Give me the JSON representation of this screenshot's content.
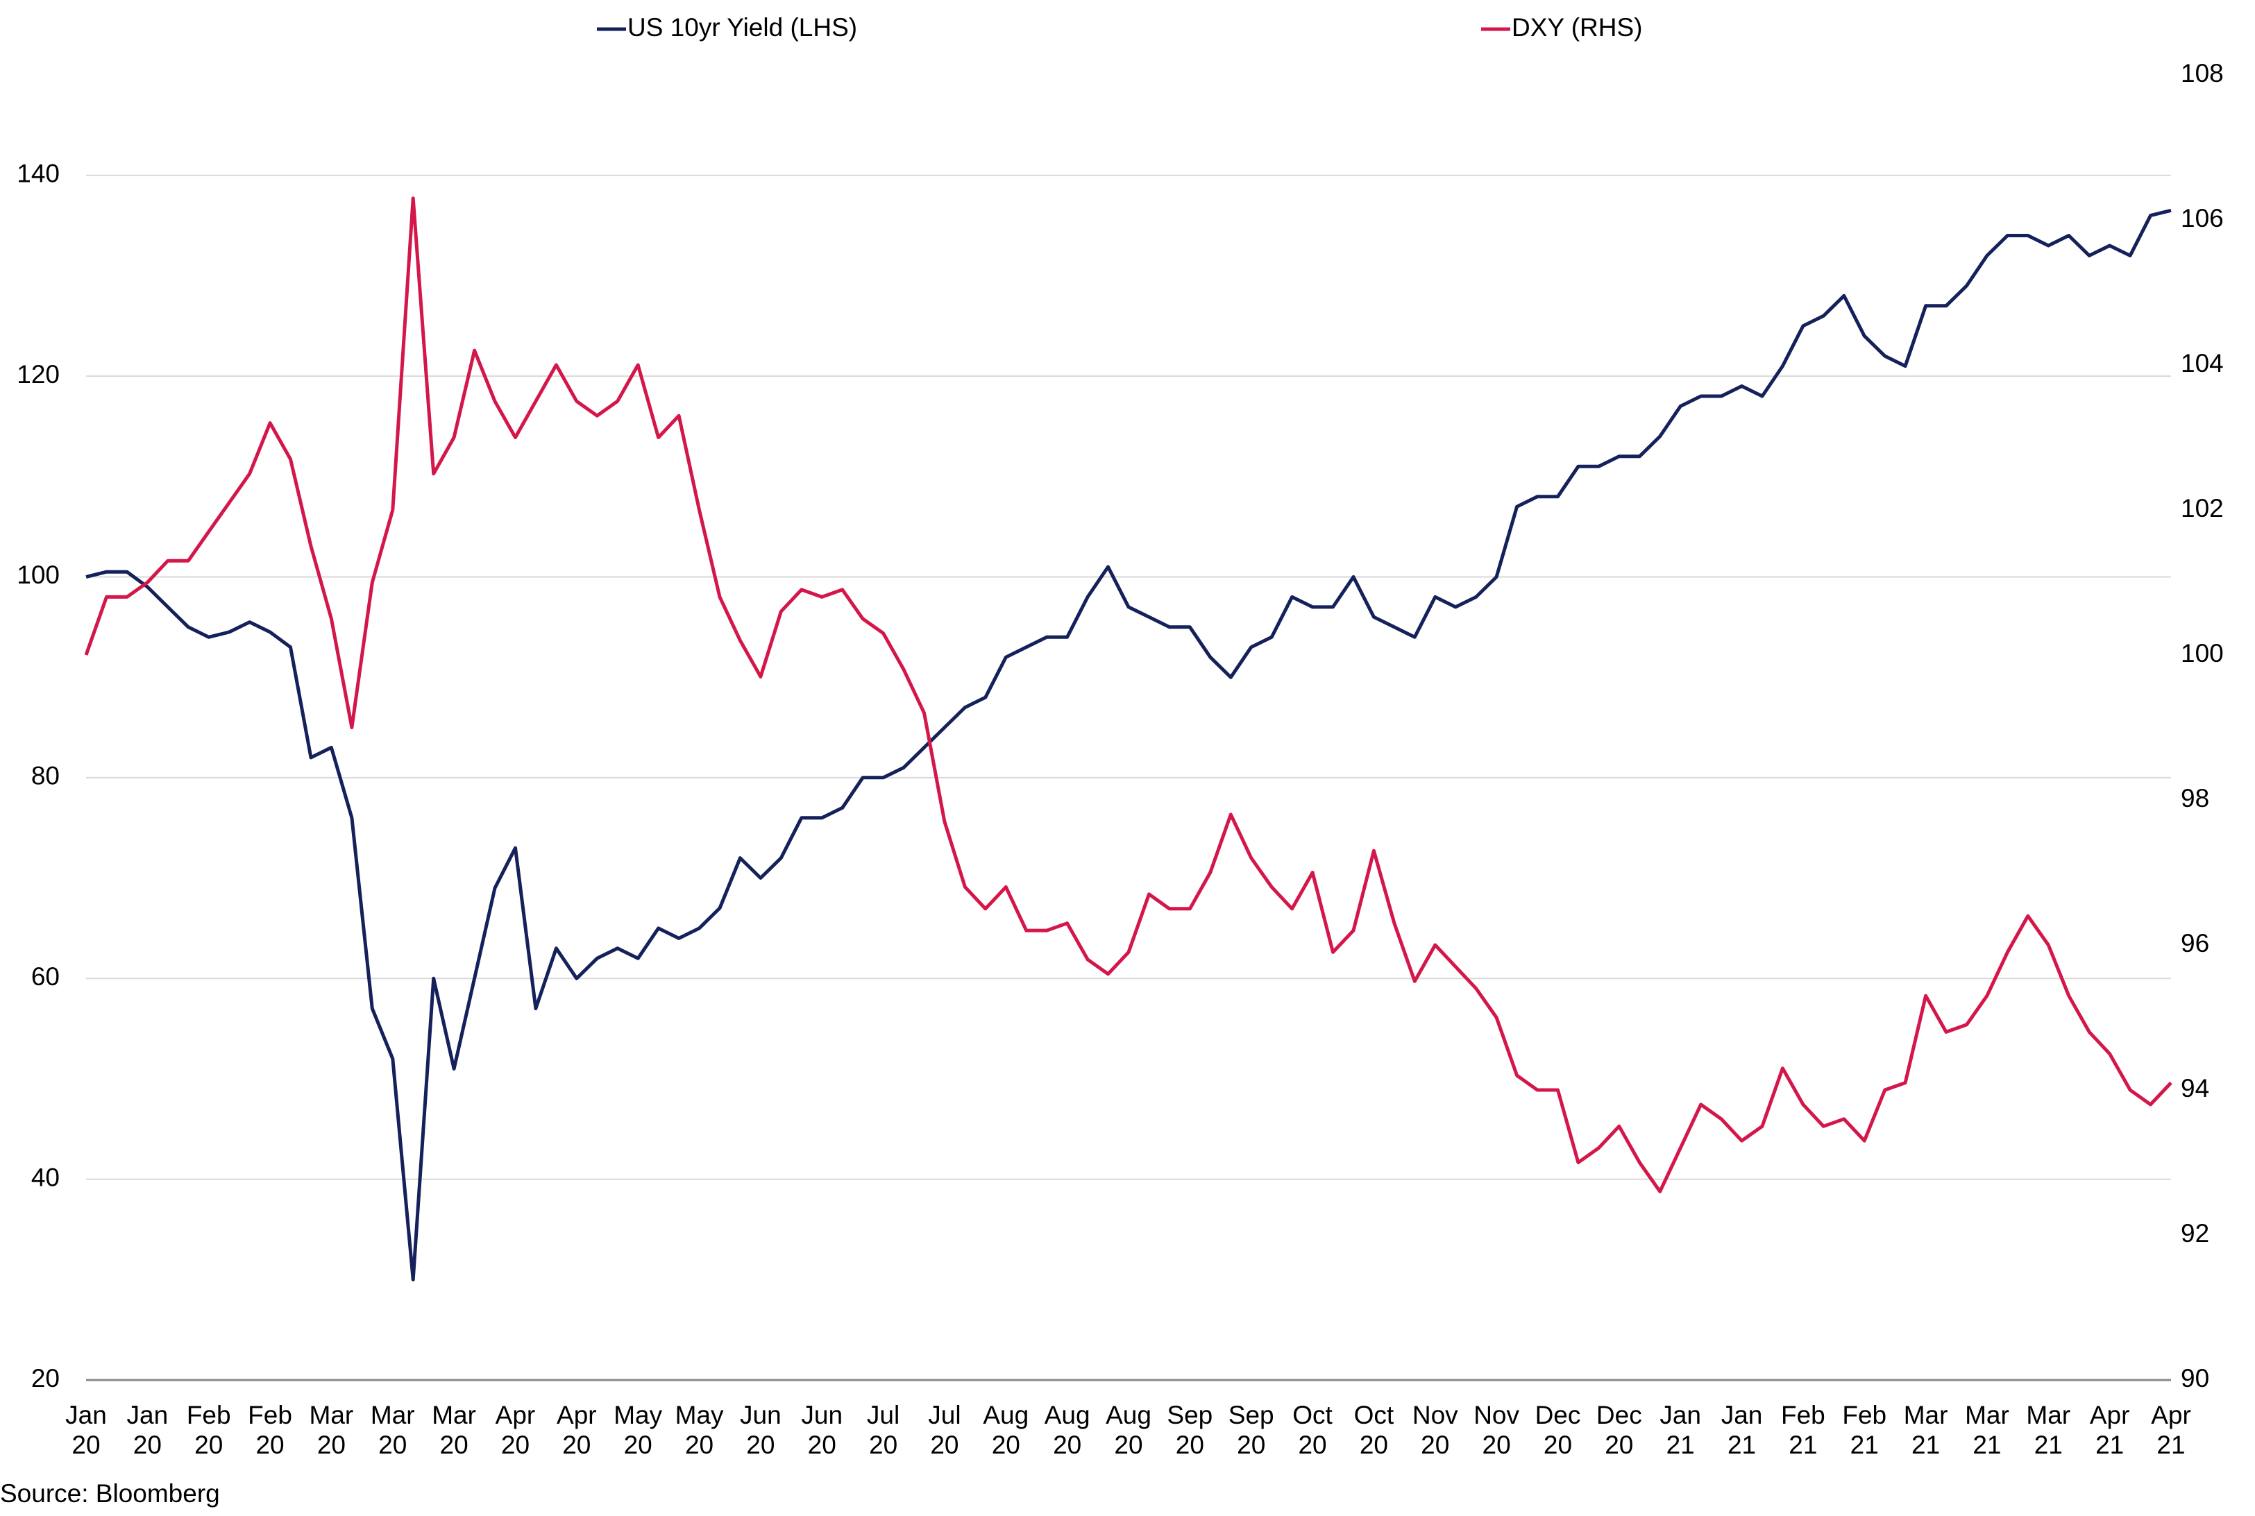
{
  "chart_data": {
    "type": "line",
    "categories": [
      "Jan\n20",
      null,
      null,
      "Jan\n20",
      null,
      null,
      "Feb\n20",
      null,
      null,
      "Feb\n20",
      null,
      null,
      "Mar\n20",
      null,
      null,
      "Mar\n20",
      null,
      null,
      "Mar\n20",
      null,
      null,
      "Apr\n20",
      null,
      null,
      "Apr\n20",
      null,
      null,
      "May\n20",
      null,
      null,
      "May\n20",
      null,
      null,
      "Jun\n20",
      null,
      null,
      "Jun\n20",
      null,
      null,
      "Jul\n20",
      null,
      null,
      "Jul\n20",
      null,
      null,
      "Aug\n20",
      null,
      null,
      "Aug\n20",
      null,
      null,
      "Aug\n20",
      null,
      null,
      "Sep\n20",
      null,
      null,
      "Sep\n20",
      null,
      null,
      "Oct\n20",
      null,
      null,
      "Oct\n20",
      null,
      null,
      "Nov\n20",
      null,
      null,
      "Nov\n20",
      null,
      null,
      "Dec\n20",
      null,
      null,
      "Dec\n20",
      null,
      null,
      "Jan\n21",
      null,
      null,
      "Jan\n21",
      null,
      null,
      "Feb\n21",
      null,
      null,
      "Feb\n21",
      null,
      null,
      "Mar\n21",
      null,
      null,
      "Mar\n21",
      null,
      null,
      "Mar\n21",
      null,
      null,
      "Apr\n21",
      null,
      null,
      "Apr\n21"
    ],
    "series": [
      {
        "name": "US 10yr Yield (LHS)",
        "color": "#14215a",
        "values": [
          100,
          100.5,
          100.5,
          99,
          97,
          95,
          94,
          94.5,
          95.5,
          94.5,
          93,
          82,
          83,
          76,
          57,
          52,
          30,
          60,
          51,
          60,
          69,
          73,
          57,
          63,
          60,
          62,
          63,
          62,
          65,
          64,
          65,
          67,
          72,
          70,
          72,
          76,
          76,
          77,
          80,
          80,
          81,
          83,
          85,
          87,
          88,
          92,
          93,
          94,
          94,
          98,
          101,
          97,
          96,
          95,
          95,
          92,
          90,
          93,
          94,
          98,
          97,
          97,
          100,
          96,
          95,
          94,
          98,
          97,
          98,
          100,
          107,
          108,
          108,
          111,
          111,
          112,
          112,
          114,
          117,
          118,
          118,
          119,
          118,
          121,
          125,
          126,
          128,
          124,
          122,
          121,
          127,
          127,
          129,
          132,
          134,
          134,
          133,
          134,
          132,
          133,
          132,
          136,
          136.5
        ]
      },
      {
        "name": "DXY (RHS)",
        "color": "#d4174a",
        "axis": "y2",
        "values": [
          100,
          100.8,
          100.8,
          101,
          101.3,
          101.3,
          101.7,
          102.1,
          102.5,
          103.2,
          102.7,
          101.5,
          100.5,
          99,
          101,
          102,
          106.3,
          102.5,
          103,
          104.2,
          103.5,
          103,
          103.5,
          104,
          103.5,
          103.3,
          103.5,
          104,
          103,
          103.3,
          102,
          100.8,
          100.2,
          99.7,
          100.6,
          100.9,
          100.8,
          100.9,
          100.5,
          100.3,
          99.8,
          99.2,
          97.7,
          96.8,
          96.5,
          96.8,
          96.2,
          96.2,
          96.3,
          95.8,
          95.6,
          95.9,
          96.7,
          96.5,
          96.5,
          97,
          97.8,
          97.2,
          96.8,
          96.5,
          97,
          95.9,
          96.2,
          97.3,
          96.3,
          95.5,
          96,
          95.7,
          95.4,
          95,
          94.2,
          94,
          94,
          93,
          93.2,
          93.5,
          93,
          92.6,
          93.2,
          93.8,
          93.6,
          93.3,
          93.5,
          94.3,
          93.8,
          93.5,
          93.6,
          93.3,
          94,
          94.1,
          95.3,
          94.8,
          94.9,
          95.3,
          95.9,
          96.4,
          96,
          95.3,
          94.8,
          94.5,
          94,
          93.8,
          94.1
        ]
      }
    ],
    "ylim": [
      20,
      150
    ],
    "yticks": [
      20,
      40,
      60,
      80,
      100,
      120,
      140
    ],
    "y2lim": [
      90,
      108
    ],
    "y2ticks": [
      90,
      92,
      94,
      96,
      98,
      100,
      102,
      104,
      106,
      108
    ],
    "grid": true,
    "source": "Source: Bloomberg"
  }
}
